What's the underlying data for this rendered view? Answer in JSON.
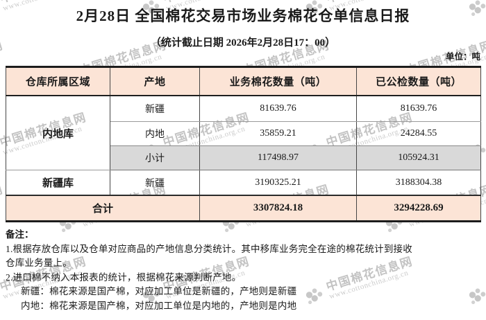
{
  "report": {
    "title": "2月28日 全国棉花交易市场业务棉花仓单信息日报",
    "subtitle": "（统计截止日期 2026年2月28日17：00）",
    "unit_label": "单位：吨"
  },
  "table": {
    "headers": [
      "仓库所属区域",
      "产地",
      "业务棉花数量（吨）",
      "已公检数量（吨）"
    ],
    "rows": [
      {
        "region": "内地库",
        "origin": "新疆",
        "business_qty": "81639.76",
        "inspected_qty": "81639.76"
      },
      {
        "origin": "内地",
        "business_qty": "35859.21",
        "inspected_qty": "24284.55"
      },
      {
        "origin": "小计",
        "business_qty": "117498.97",
        "inspected_qty": "105924.31"
      },
      {
        "region": "新疆库",
        "origin": "新疆",
        "business_qty": "3190325.21",
        "inspected_qty": "3188304.38"
      }
    ],
    "total": {
      "label": "合计",
      "business_qty": "3307824.18",
      "inspected_qty": "3294228.69"
    }
  },
  "notes": {
    "title": "备注：",
    "lines": [
      "1.根据存放仓库以及仓单对应商品的产地信息分类统计。其中移库业务完全在途的棉花统计到接收",
      "仓库业务量上。",
      "2.进口棉不纳入本报表的统计，根据棉花来源判断产地。",
      "新疆：棉花来源是国产棉，对应加工单位是新疆的，产地则是新疆",
      "内地：棉花来源是国产棉，对应加工单位是内地的，产地则是内地"
    ]
  },
  "watermark": {
    "name": "中国棉花信息网",
    "url": "www.cottonchina.org.cn"
  },
  "colors": {
    "header_bg": "#fce4d6",
    "subtotal_bg": "#d9d9d9",
    "total_bg": "#fce4d6",
    "border_dark": "#1c1c1c",
    "watermark_gray": "#c3c3c3"
  }
}
